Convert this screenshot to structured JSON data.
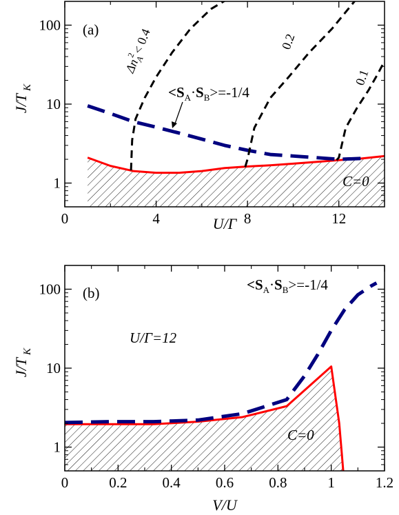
{
  "chart_data": [
    {
      "panel": "a",
      "panel_label": "(a)",
      "type": "line",
      "xlabel": "U/Γ",
      "ylabel": "J/T",
      "ylabel_sub": "K",
      "xlim": [
        0,
        14
      ],
      "ylim": [
        0.5,
        200
      ],
      "yscale": "log",
      "xticks": [
        0,
        4,
        8,
        12
      ],
      "xtick_labels": [
        "0",
        "4",
        "8",
        "12"
      ],
      "yticks": [
        1,
        10,
        100
      ],
      "ytick_labels": [
        "1",
        "10",
        "100"
      ],
      "grid": false,
      "legend": "none",
      "series": [
        {
          "style": "solid",
          "color": "#ff0000",
          "fill_below_hatched": true,
          "x": [
            1,
            2,
            3,
            4,
            5,
            6,
            7,
            8,
            9,
            10,
            11,
            12,
            13,
            14
          ],
          "y": [
            2.1,
            1.65,
            1.42,
            1.35,
            1.35,
            1.42,
            1.55,
            1.62,
            1.68,
            1.76,
            1.85,
            1.95,
            2.05,
            2.2
          ]
        },
        {
          "style": "longdash",
          "color": "#00007f",
          "x": [
            1,
            2,
            3,
            4,
            5,
            6,
            7,
            8,
            9,
            10,
            11,
            12,
            13
          ],
          "y": [
            9.5,
            7.6,
            6.0,
            5.1,
            4.3,
            3.6,
            3.0,
            2.6,
            2.3,
            2.2,
            2.1,
            2.0,
            2.05
          ]
        },
        {
          "style": "dash",
          "color": "#000000",
          "x": [
            2.9,
            2.95,
            3.1,
            3.5,
            4.0,
            4.7,
            5.5,
            6.4,
            7.2
          ],
          "y": [
            1.45,
            3.5,
            6.5,
            12,
            22,
            45,
            90,
            160,
            220
          ]
        },
        {
          "style": "dash",
          "color": "#000000",
          "x": [
            7.9,
            8.0,
            8.3,
            9.0,
            9.8,
            10.7,
            11.7,
            12.8
          ],
          "y": [
            1.6,
            2.0,
            5,
            12,
            22,
            45,
            90,
            220
          ]
        },
        {
          "style": "dash",
          "color": "#000000",
          "x": [
            11.9,
            12.0,
            12.3,
            12.8,
            13.3,
            13.7,
            14.0
          ],
          "y": [
            1.95,
            2.1,
            5.0,
            9.0,
            15,
            24,
            35
          ]
        }
      ],
      "annotations": {
        "label_04": "Δn",
        "label_04_sub": "A",
        "label_04_sup": "2",
        "label_04_tail": "< 0.4",
        "label_02": "0.2",
        "label_01": "0.1",
        "spin_lbl_open": "<S",
        "spin_lbl_sub_a": "A",
        "spin_lbl_dot": "·",
        "spin_lbl_s": "S",
        "spin_lbl_sub_b": "B",
        "spin_lbl_close": ">=-1/4",
        "region": "C=0"
      }
    },
    {
      "panel": "b",
      "panel_label": "(b)",
      "type": "line",
      "xlabel": "V/U",
      "ylabel": "J/T",
      "ylabel_sub": "K",
      "xlim": [
        0,
        1.2
      ],
      "ylim": [
        0.5,
        200
      ],
      "yscale": "log",
      "xticks": [
        0,
        0.2,
        0.4,
        0.6,
        0.8,
        1,
        1.2
      ],
      "xtick_labels": [
        "0",
        "0.2",
        "0.4",
        "0.6",
        "0.8",
        "1",
        "1.2"
      ],
      "yticks": [
        1,
        10,
        100
      ],
      "ytick_labels": [
        "1",
        "10",
        "100"
      ],
      "grid": false,
      "legend": "none",
      "series": [
        {
          "style": "solid",
          "color": "#ff0000",
          "fill_below_hatched": true,
          "x": [
            0,
            0.167,
            0.333,
            0.5,
            0.667,
            0.833,
            1.0,
            1.03,
            1.04,
            1.045
          ],
          "y": [
            1.95,
            1.95,
            1.95,
            2.1,
            2.4,
            3.3,
            10.5,
            2.0,
            0.8,
            0.5
          ]
        },
        {
          "style": "longdash",
          "color": "#00007f",
          "x": [
            0,
            0.167,
            0.333,
            0.5,
            0.667,
            0.833,
            0.9,
            0.95,
            1.0,
            1.05,
            1.1,
            1.15,
            1.17
          ],
          "y": [
            2.05,
            2.1,
            2.1,
            2.2,
            2.65,
            4.0,
            8.0,
            15,
            30,
            55,
            85,
            110,
            120
          ]
        }
      ],
      "annotations": {
        "spin_lbl_open": "<S",
        "spin_lbl_sub_a": "A",
        "spin_lbl_dot": "·",
        "spin_lbl_s": "S",
        "spin_lbl_sub_b": "B",
        "spin_lbl_close": ">=-1/4",
        "param": "U/Γ=12",
        "region": "C=0"
      }
    }
  ]
}
